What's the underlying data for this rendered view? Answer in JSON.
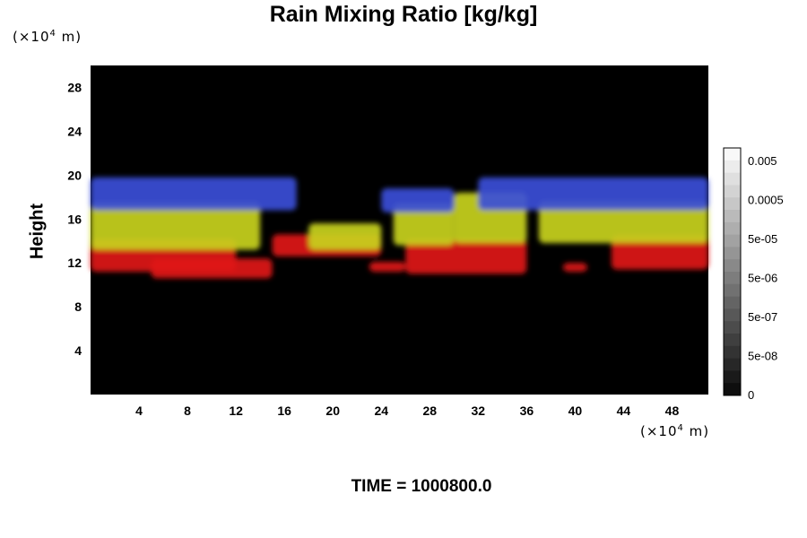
{
  "chart_data": {
    "type": "heatmap",
    "title": "Rain Mixing Ratio [kg/kg]",
    "ylabel": "Height",
    "xlabel": "",
    "x_unit_base": "×10",
    "x_unit_exp": "4",
    "x_unit_suffix": " m",
    "y_unit_base": "(×10",
    "y_unit_exp": "4",
    "y_unit_suffix": " m)",
    "x_unit_open": "(",
    "x_unit_close": ")",
    "xlim": [
      0,
      51
    ],
    "ylim": [
      0,
      30
    ],
    "x_ticks": [
      4,
      8,
      12,
      16,
      20,
      24,
      28,
      32,
      36,
      40,
      44,
      48
    ],
    "y_ticks": [
      4,
      8,
      12,
      16,
      20,
      24,
      28
    ],
    "colorbar_labels": [
      "0.005",
      "0.0005",
      "5e-05",
      "5e-06",
      "5e-07",
      "5e-08",
      "0"
    ],
    "background_color": "#000000",
    "layer_colors": {
      "top": "#3a4fd8",
      "upper": "#c8d21e",
      "lower": "#e01414"
    },
    "layers": [
      {
        "name": "red",
        "color": "#e01414",
        "bands": [
          {
            "x": [
              0,
              12
            ],
            "y": [
              11.2,
              14.2
            ]
          },
          {
            "x": [
              5,
              15
            ],
            "y": [
              10.6,
              12.4
            ]
          },
          {
            "x": [
              15,
              24
            ],
            "y": [
              12.6,
              14.6
            ]
          },
          {
            "x": [
              23,
              26
            ],
            "y": [
              11.2,
              12.1
            ]
          },
          {
            "x": [
              26,
              36
            ],
            "y": [
              11.0,
              14.2
            ]
          },
          {
            "x": [
              39,
              41
            ],
            "y": [
              11.2,
              12.0
            ]
          },
          {
            "x": [
              43,
              51
            ],
            "y": [
              11.4,
              14.5
            ]
          }
        ]
      },
      {
        "name": "yellow",
        "color": "#c8d21e",
        "bands": [
          {
            "x": [
              0,
              14
            ],
            "y": [
              13.2,
              17.5
            ]
          },
          {
            "x": [
              18,
              24
            ],
            "y": [
              13.2,
              15.6
            ]
          },
          {
            "x": [
              25,
              30
            ],
            "y": [
              13.6,
              17.4
            ]
          },
          {
            "x": [
              30,
              36
            ],
            "y": [
              13.8,
              18.4
            ]
          },
          {
            "x": [
              37,
              51
            ],
            "y": [
              13.8,
              17.6
            ]
          }
        ]
      },
      {
        "name": "blue",
        "color": "#3a4fd8",
        "bands": [
          {
            "x": [
              0,
              17
            ],
            "y": [
              16.8,
              19.8
            ]
          },
          {
            "x": [
              24,
              30
            ],
            "y": [
              16.6,
              18.8
            ]
          },
          {
            "x": [
              32,
              51
            ],
            "y": [
              16.8,
              19.8
            ]
          }
        ]
      }
    ]
  },
  "footer": {
    "time": "TIME = 1000800.0"
  }
}
